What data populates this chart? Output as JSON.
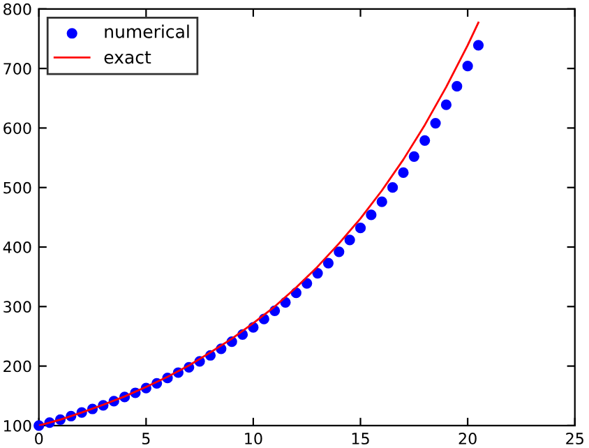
{
  "chart_data": {
    "type": "line",
    "xlim": [
      0,
      25
    ],
    "ylim": [
      100,
      800
    ],
    "xticks": [
      0,
      5,
      10,
      15,
      20,
      25
    ],
    "yticks": [
      100,
      200,
      300,
      400,
      500,
      600,
      700,
      800
    ],
    "grid": false,
    "legend": "top left",
    "series": [
      {
        "name": "numerical",
        "type": "scatter",
        "marker": "circle",
        "color": "#0000ff",
        "x": [
          0,
          0.5,
          1,
          1.5,
          2,
          2.5,
          3,
          3.5,
          4,
          4.5,
          5,
          5.5,
          6,
          6.5,
          7,
          7.5,
          8,
          8.5,
          9,
          9.5,
          10,
          10.5,
          11,
          11.5,
          12,
          12.5,
          13,
          13.5,
          14,
          14.5,
          15,
          15.5,
          16,
          16.5,
          17,
          17.5,
          18,
          18.5,
          19,
          19.5,
          20,
          20.5
        ],
        "values": [
          100,
          105,
          110,
          116,
          122,
          128,
          134,
          141,
          148,
          155,
          163,
          171,
          180,
          189,
          198,
          208,
          218,
          229,
          241,
          253,
          265,
          279,
          293,
          307,
          323,
          339,
          356,
          373,
          392,
          412,
          432,
          454,
          476,
          500,
          525,
          552,
          579,
          608,
          639,
          670,
          704,
          739
        ]
      },
      {
        "name": "exact",
        "marker": "none",
        "line_style": "solid",
        "color": "#ff0000",
        "x": [
          0,
          1,
          2,
          3,
          4,
          5,
          6,
          7,
          8,
          9,
          10,
          11,
          12,
          13,
          14,
          15,
          16,
          17,
          18,
          19,
          20,
          20.5
        ],
        "values": [
          100,
          110,
          122,
          135,
          149,
          165,
          182,
          201,
          223,
          246,
          272,
          300,
          332,
          367,
          406,
          448,
          495,
          547,
          605,
          669,
          739,
          777
        ]
      }
    ]
  }
}
